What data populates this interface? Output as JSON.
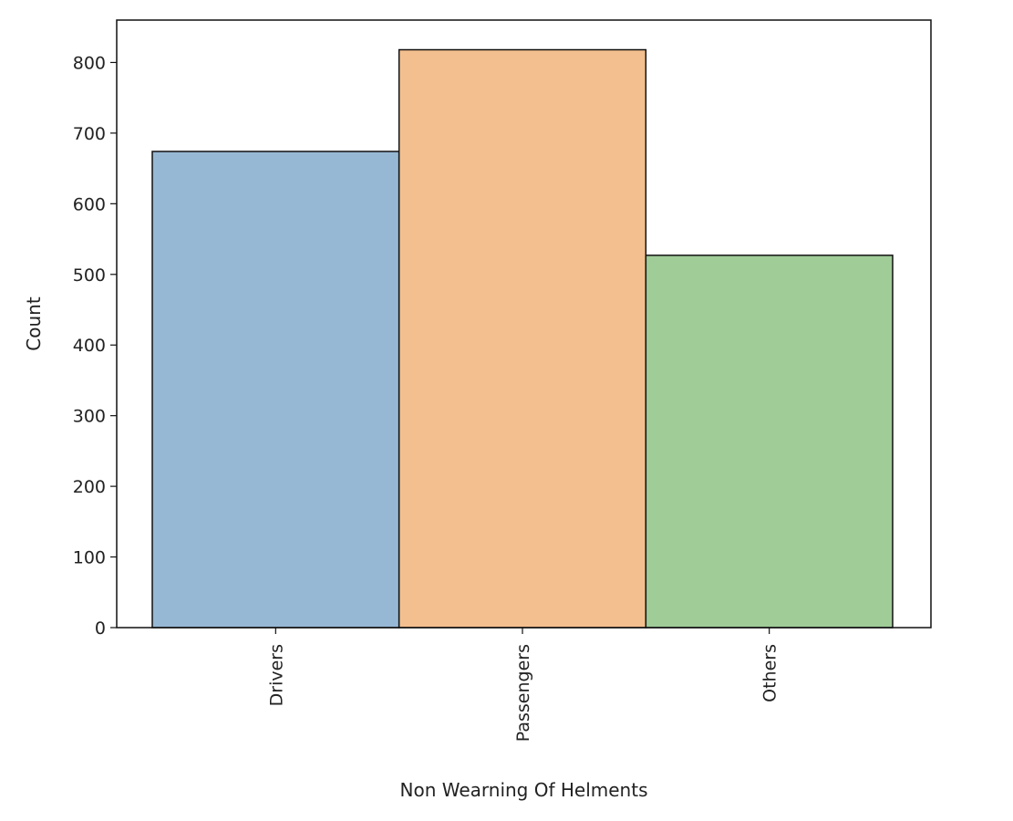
{
  "chart_data": {
    "type": "bar",
    "title": "",
    "xlabel": "Non Wearning Of Helments",
    "ylabel": "Count",
    "categories": [
      "Drivers",
      "Passengers",
      "Others"
    ],
    "values": [
      674,
      818,
      527
    ],
    "colors": [
      "#97b8d5",
      "#f4bf8e",
      "#a0cc98"
    ],
    "edge_color": "#111111",
    "ylim": [
      0,
      860
    ],
    "yticks": [
      0,
      100,
      200,
      300,
      400,
      500,
      600,
      700,
      800
    ],
    "grid": false,
    "legend": "none"
  }
}
